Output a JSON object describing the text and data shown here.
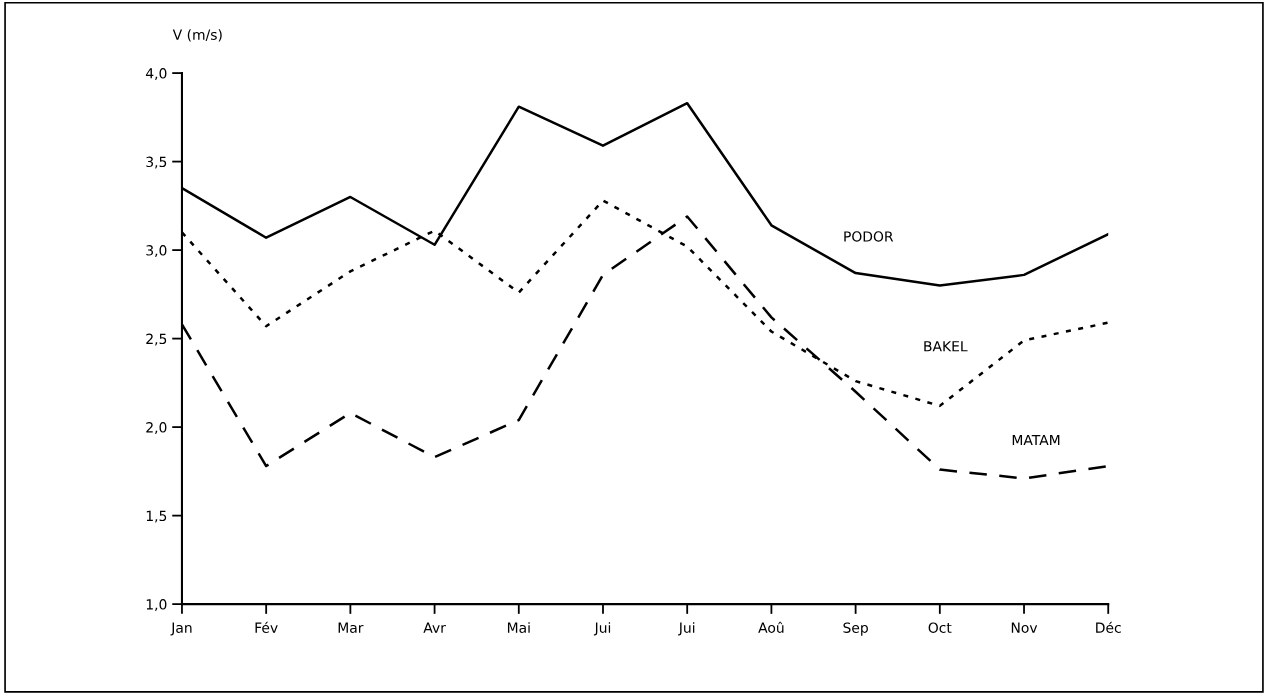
{
  "chart_data": {
    "type": "line",
    "ylabel": "V (m/s)",
    "categories": [
      "Jan",
      "Fév",
      "Mar",
      "Avr",
      "Mai",
      "Jui",
      "Jui",
      "Aoû",
      "Sep",
      "Oct",
      "Nov",
      "Déc"
    ],
    "series": [
      {
        "name": "PODOR",
        "color": "#000000",
        "line_style": "solid",
        "values": [
          3.35,
          3.07,
          3.3,
          3.03,
          3.81,
          3.59,
          3.83,
          3.14,
          2.87,
          2.8,
          2.86,
          3.09
        ]
      },
      {
        "name": "BAKEL",
        "color": "#000000",
        "line_style": "dotted",
        "values": [
          3.1,
          2.57,
          2.88,
          3.11,
          2.76,
          3.28,
          3.02,
          2.54,
          2.26,
          2.12,
          2.49,
          2.59
        ]
      },
      {
        "name": "MATAM",
        "color": "#000000",
        "line_style": "dashed",
        "values": [
          2.58,
          1.78,
          2.08,
          1.83,
          2.04,
          2.86,
          3.19,
          2.62,
          2.2,
          1.76,
          1.71,
          1.78
        ]
      }
    ],
    "ylim": [
      1,
      4
    ],
    "yticks": [
      {
        "value": 1,
        "label": "1,0"
      },
      {
        "value": 1.5,
        "label": "1,5"
      },
      {
        "value": 2,
        "label": "2,0"
      },
      {
        "value": 2.5,
        "label": "2,5"
      },
      {
        "value": 3,
        "label": "3,0"
      },
      {
        "value": 3.5,
        "label": "3,5"
      },
      {
        "value": 4,
        "label": "4,0"
      }
    ],
    "grid": false,
    "legend": false,
    "marker": "none"
  }
}
